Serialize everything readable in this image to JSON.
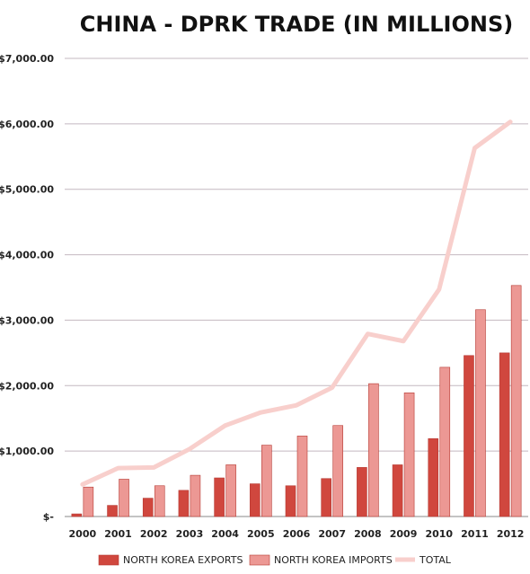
{
  "chart_data": {
    "type": "bar",
    "title": "CHINA - DPRK TRADE (IN MILLIONS)",
    "xlabel": "",
    "ylabel": "",
    "categories": [
      "2000",
      "2001",
      "2002",
      "2003",
      "2004",
      "2005",
      "2006",
      "2007",
      "2008",
      "2009",
      "2010",
      "2011",
      "2012"
    ],
    "ylim": [
      0,
      7000
    ],
    "y_ticks": [
      {
        "value": 0,
        "label": "$-"
      },
      {
        "value": 1000,
        "label": "$1,000.00"
      },
      {
        "value": 2000,
        "label": "$2,000.00"
      },
      {
        "value": 3000,
        "label": "$3,000.00"
      },
      {
        "value": 4000,
        "label": "$4,000.00"
      },
      {
        "value": 5000,
        "label": "$5,000.00"
      },
      {
        "value": 6000,
        "label": "$6,000.00"
      },
      {
        "value": 7000,
        "label": "$7,000.00"
      }
    ],
    "grid": true,
    "legend_position": "bottom",
    "series": [
      {
        "name": "NORTH KOREA EXPORTS",
        "kind": "bar",
        "color": "#d0473e",
        "values": [
          40,
          170,
          280,
          400,
          590,
          500,
          470,
          580,
          750,
          790,
          1190,
          2460,
          2500
        ]
      },
      {
        "name": "NORTH KOREA IMPORTS",
        "kind": "bar",
        "color": "#ec9894",
        "values": [
          450,
          570,
          470,
          630,
          790,
          1090,
          1230,
          1390,
          2030,
          1890,
          2280,
          3160,
          3530
        ]
      },
      {
        "name": "TOTAL",
        "kind": "line",
        "color": "#f8cfcc",
        "values": [
          490,
          740,
          750,
          1030,
          1390,
          1590,
          1700,
          1970,
          2790,
          2680,
          3470,
          5630,
          6030
        ]
      }
    ]
  }
}
